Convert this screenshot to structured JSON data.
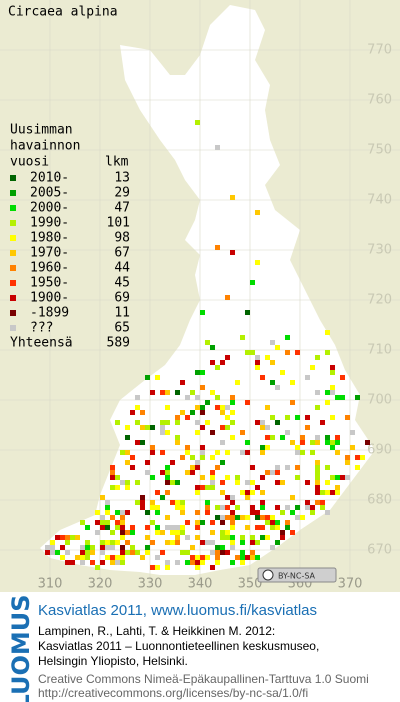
{
  "title": "Circaea alpina",
  "legend": {
    "title_lines": [
      "Uusimman",
      "havainnon"
    ],
    "year_header": "vuosi",
    "count_header": "lkm",
    "entries": [
      {
        "label": "2010-",
        "count": 13,
        "color": "#006400"
      },
      {
        "label": "2005-",
        "count": 29,
        "color": "#00a000"
      },
      {
        "label": "2000-",
        "count": 47,
        "color": "#00dc00"
      },
      {
        "label": "1990-",
        "count": 101,
        "color": "#b4f000"
      },
      {
        "label": "1980-",
        "count": 98,
        "color": "#ffff00"
      },
      {
        "label": "1970-",
        "count": 67,
        "color": "#ffc800"
      },
      {
        "label": "1960-",
        "count": 44,
        "color": "#ff8200"
      },
      {
        "label": "1950-",
        "count": 45,
        "color": "#ff3200"
      },
      {
        "label": "1900-",
        "count": 69,
        "color": "#c80000"
      },
      {
        "label": "-1899",
        "count": 11,
        "color": "#780000"
      },
      {
        "label": "???",
        "count": 65,
        "color": "#c8c8c8"
      }
    ],
    "total_label": "Yhteensä",
    "total": 589
  },
  "grid": {
    "northing": [
      770,
      760,
      750,
      740,
      730,
      720,
      710,
      700,
      690,
      680,
      670
    ],
    "easting": [
      310,
      320,
      330,
      340,
      350,
      360,
      370
    ]
  },
  "license_badge": "BY-NC-SA",
  "footer": {
    "logo": "LUOMUS",
    "headline": "Kasviatlas 2011, www.luomus.fi/kasviatlas",
    "citation": [
      "Lampinen, R., Lahti, T. & Heikkinen M. 2012:",
      "Kasviatlas 2011 – Luonnontieteellinen keskusmuseo,",
      "Helsingin Yliopisto, Helsinki."
    ],
    "license": [
      "Creative Commons Nimeä-Epäkaupallinen-Tarttuva 1.0 Suomi",
      "http://creativecommons.org/licenses/by-nc-sa/1.0/fi"
    ]
  }
}
